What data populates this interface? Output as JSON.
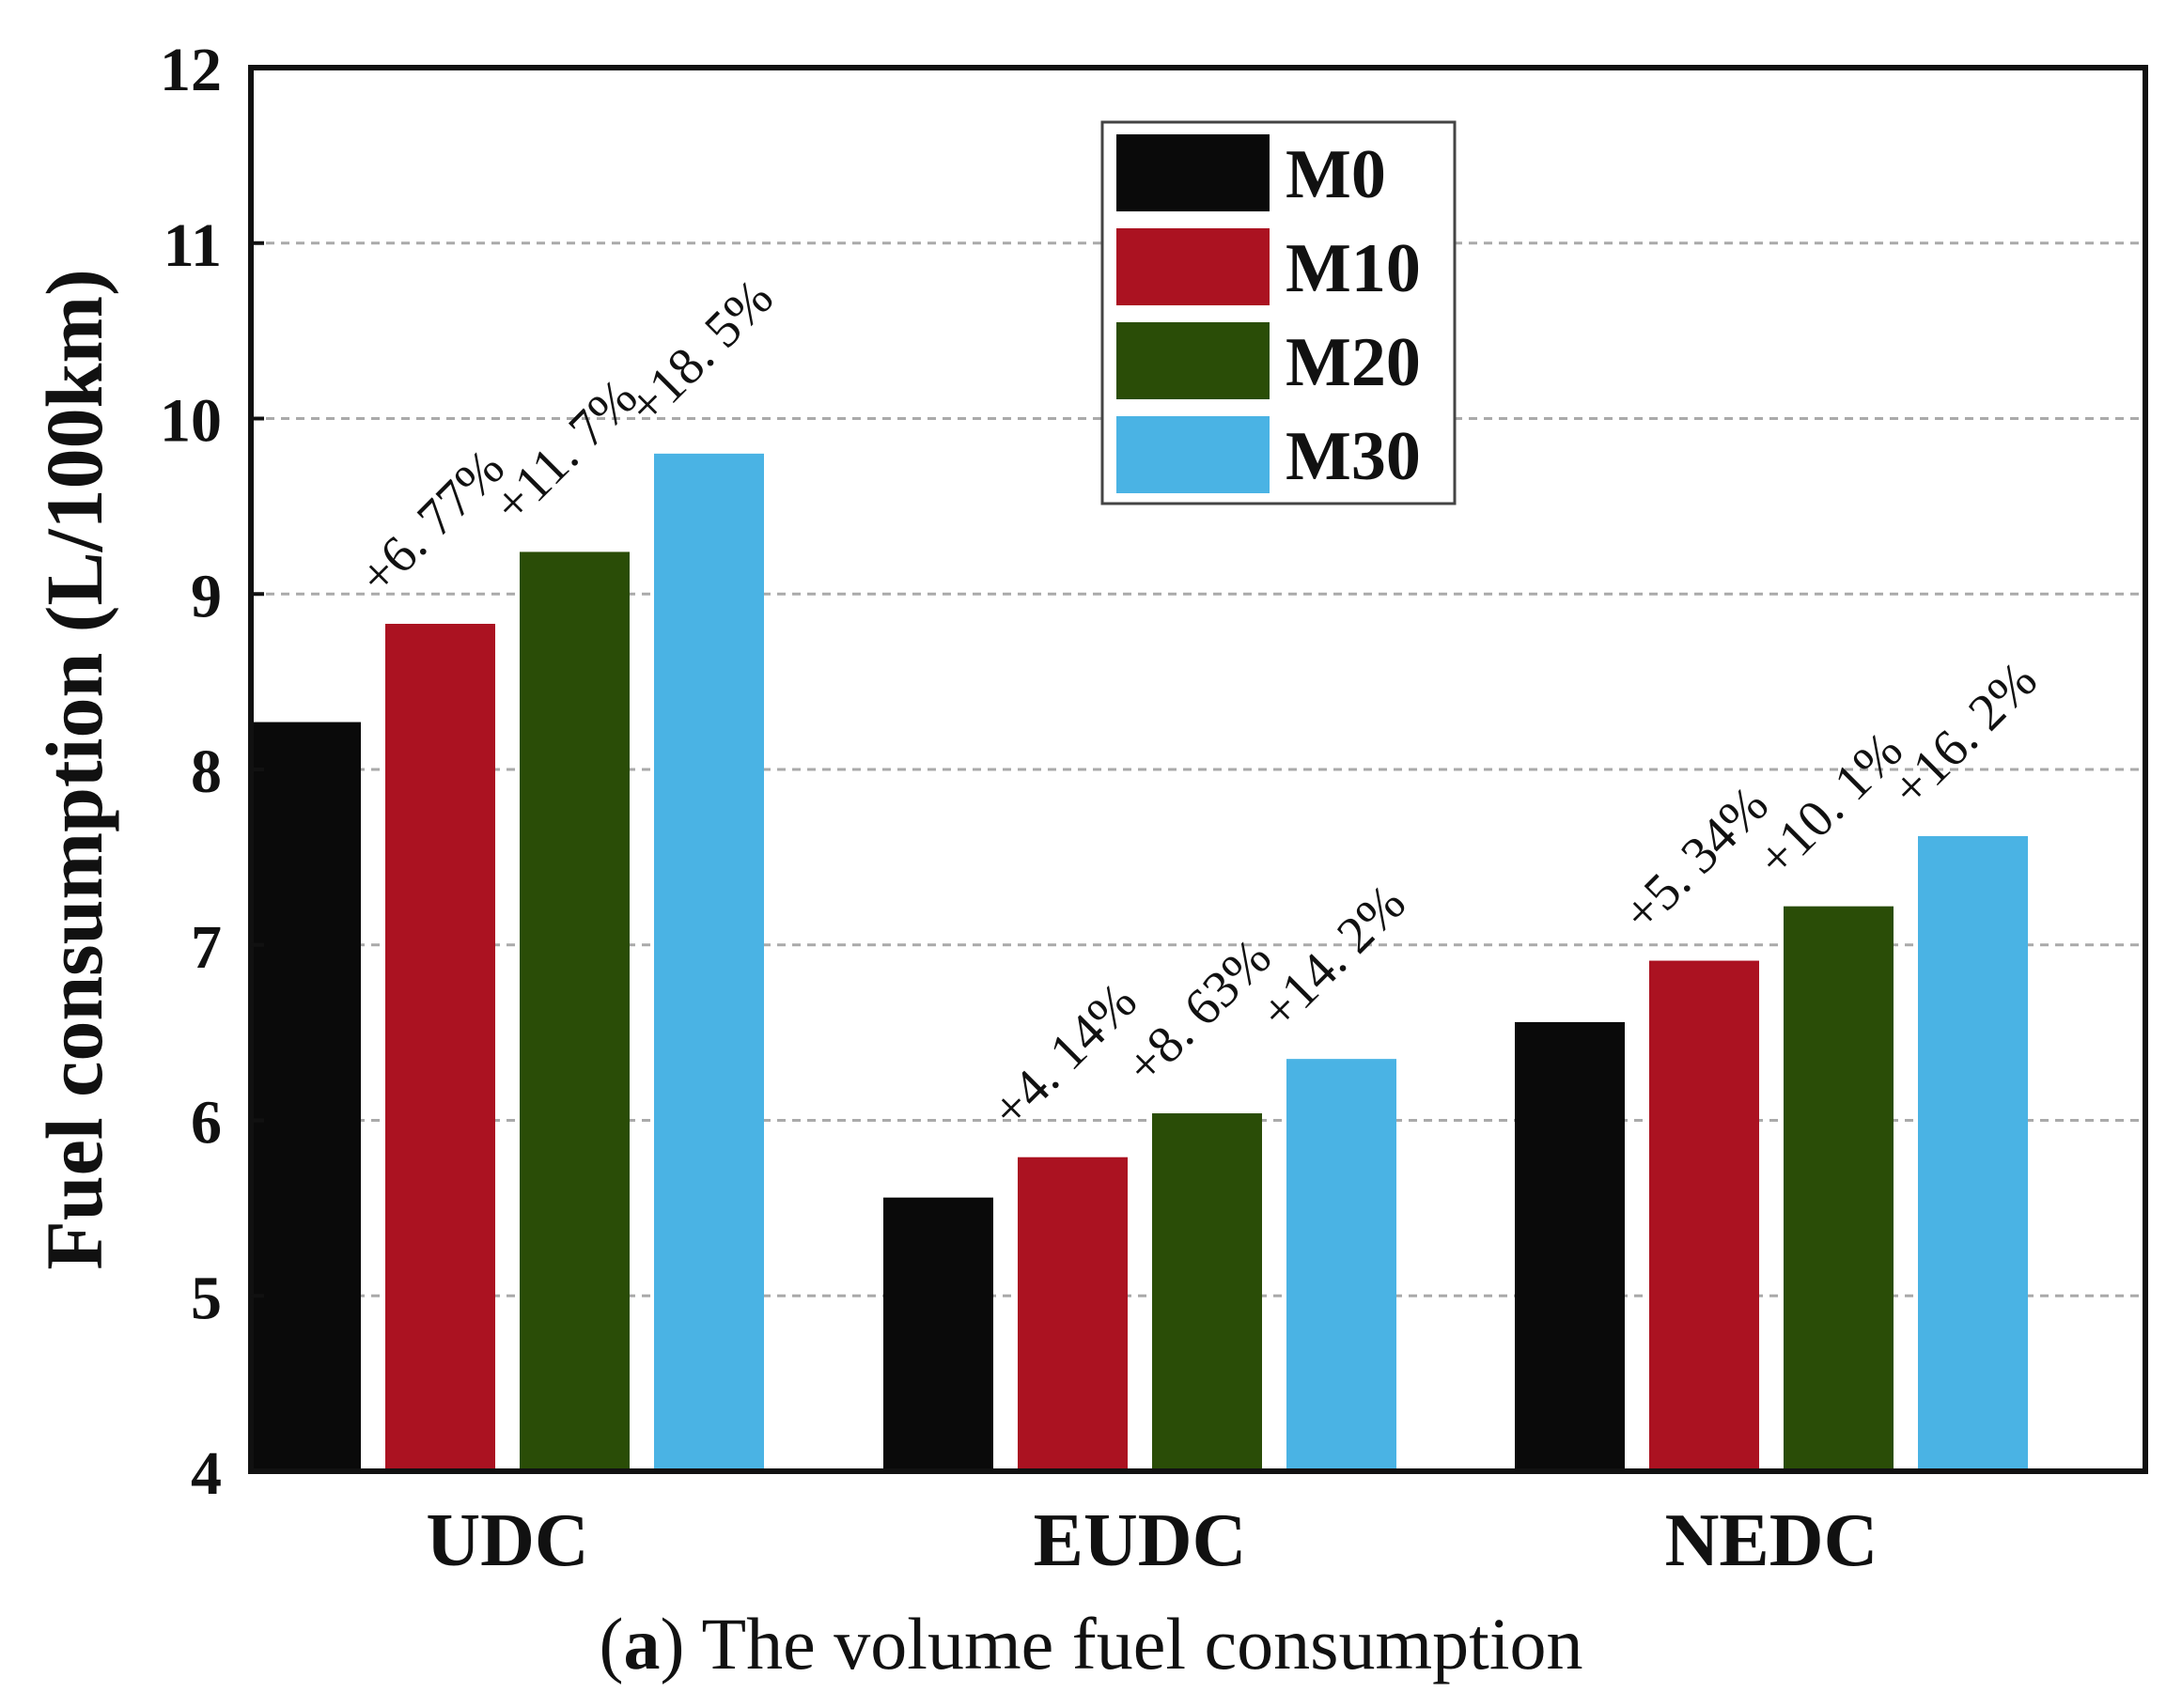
{
  "chart_data": {
    "type": "bar",
    "ylabel": "Fuel consumption (L/100km)",
    "xlabel": "",
    "ylim": [
      4,
      12
    ],
    "yticks": [
      4,
      5,
      6,
      7,
      8,
      9,
      10,
      11,
      12
    ],
    "grid": "horizontal dashed",
    "legend_position": "top-center",
    "categories": [
      "UDC",
      "EUDC",
      "NEDC"
    ],
    "series": [
      {
        "name": "M0",
        "color": "#0a0a0a",
        "values": [
          8.27,
          5.56,
          6.56
        ],
        "annotations": [
          "",
          "",
          ""
        ]
      },
      {
        "name": "M10",
        "color": "#ab1221",
        "values": [
          8.83,
          5.79,
          6.91
        ],
        "annotations": [
          "+6. 77%",
          "+4. 14%",
          "+5. 34%"
        ]
      },
      {
        "name": "M20",
        "color": "#2a4d07",
        "values": [
          9.24,
          6.04,
          7.22
        ],
        "annotations": [
          "+11. 7%",
          "+8. 63%",
          "+10. 1%"
        ]
      },
      {
        "name": "M30",
        "color": "#4ab3e4",
        "values": [
          9.8,
          6.35,
          7.62
        ],
        "annotations": [
          "+18. 5%",
          "+14. 2%",
          "+16. 2%"
        ]
      }
    ]
  },
  "caption": {
    "label": "a",
    "open": "(",
    "close": ")",
    "text": " The volume fuel consumption"
  }
}
